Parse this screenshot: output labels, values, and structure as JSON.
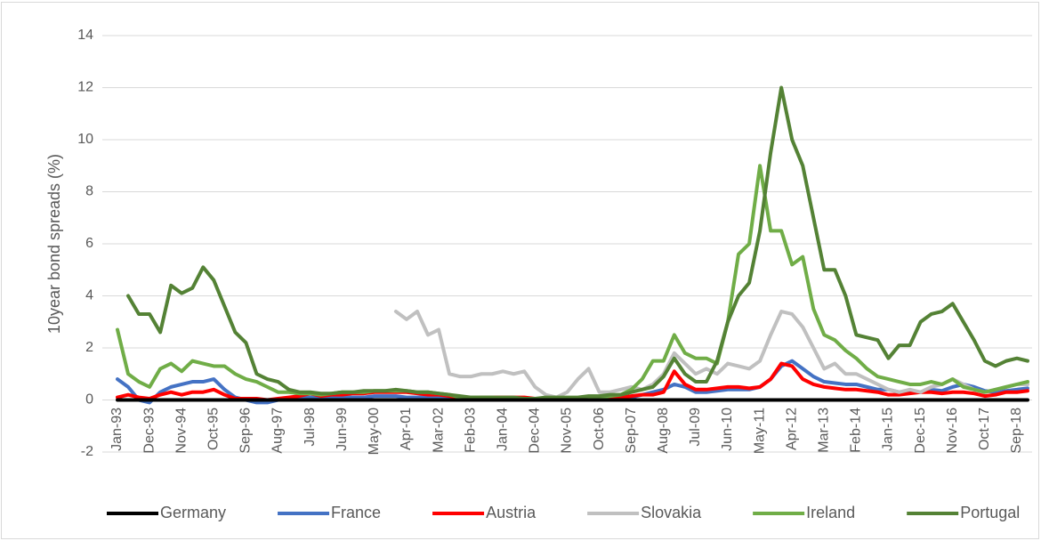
{
  "chart_data": {
    "type": "line",
    "y_label": "10year bond spreads (%)",
    "categories": [
      "Jan-93",
      null,
      null,
      "Dec-93",
      null,
      null,
      "Nov-94",
      null,
      null,
      "Oct-95",
      null,
      null,
      "Sep-96",
      null,
      null,
      "Aug-97",
      null,
      null,
      "Jul-98",
      null,
      null,
      "Jun-99",
      null,
      null,
      "May-00",
      null,
      null,
      "Apr-01",
      null,
      null,
      "Mar-02",
      null,
      null,
      "Feb-03",
      null,
      null,
      "Jan-04",
      null,
      null,
      "Dec-04",
      null,
      null,
      "Nov-05",
      null,
      null,
      "Oct-06",
      null,
      null,
      "Sep-07",
      null,
      null,
      "Aug-08",
      null,
      null,
      "Jul-09",
      null,
      null,
      "Jun-10",
      null,
      null,
      "May-11",
      null,
      null,
      "Apr-12",
      null,
      null,
      "Mar-13",
      null,
      null,
      "Feb-14",
      null,
      null,
      "Jan-15",
      null,
      null,
      "Dec-15",
      null,
      null,
      "Nov-16",
      null,
      null,
      "Oct-17",
      null,
      null,
      "Sep-18",
      null
    ],
    "series": [
      {
        "name": "Germany",
        "color": "#000000",
        "values": [
          0,
          0,
          0,
          0,
          0,
          0,
          0,
          0,
          0,
          0,
          0,
          0,
          0,
          0,
          0,
          0,
          0,
          0,
          0,
          0,
          0,
          0,
          0,
          0,
          0,
          0,
          0,
          0,
          0,
          0,
          0,
          0,
          0,
          0,
          0,
          0,
          0,
          0,
          0,
          0,
          0,
          0,
          0,
          0,
          0,
          0,
          0,
          0,
          0,
          0,
          0,
          0,
          0,
          0,
          0,
          0,
          0,
          0,
          0,
          0,
          0,
          0,
          0,
          0,
          0,
          0,
          0,
          0,
          0,
          0,
          0,
          0,
          0,
          0,
          0,
          0,
          0,
          0,
          0,
          0,
          0,
          0,
          0,
          0,
          0,
          0
        ]
      },
      {
        "name": "France",
        "color": "#4472c4",
        "values": [
          0.8,
          0.5,
          0,
          -0.1,
          0.3,
          0.5,
          0.6,
          0.7,
          0.7,
          0.8,
          0.4,
          0.1,
          0,
          -0.1,
          -0.1,
          0,
          0.05,
          0.1,
          0.1,
          0.1,
          0.1,
          0.1,
          0.1,
          0.1,
          0.15,
          0.15,
          0.15,
          0.1,
          0.1,
          0.1,
          0.1,
          0.1,
          0.05,
          0.05,
          0.05,
          0.05,
          0.05,
          0.05,
          0.05,
          0,
          0,
          0,
          0,
          0.05,
          0.05,
          0.05,
          0.05,
          0.1,
          0.1,
          0.2,
          0.3,
          0.4,
          0.6,
          0.5,
          0.3,
          0.3,
          0.35,
          0.4,
          0.4,
          0.4,
          0.5,
          0.8,
          1.3,
          1.5,
          1.2,
          0.9,
          0.7,
          0.65,
          0.6,
          0.6,
          0.5,
          0.4,
          0.4,
          0.3,
          0.3,
          0.3,
          0.4,
          0.35,
          0.5,
          0.6,
          0.5,
          0.35,
          0.3,
          0.35,
          0.4,
          0.45
        ]
      },
      {
        "name": "Austria",
        "color": "#ff0000",
        "values": [
          0.1,
          0.2,
          0.1,
          0.05,
          0.2,
          0.3,
          0.2,
          0.3,
          0.3,
          0.4,
          0.2,
          0.05,
          0.05,
          0.05,
          0,
          0.05,
          0.1,
          0.15,
          0.25,
          0.15,
          0.2,
          0.2,
          0.25,
          0.25,
          0.3,
          0.3,
          0.3,
          0.3,
          0.25,
          0.2,
          0.2,
          0.15,
          0.1,
          0.05,
          0.1,
          0.1,
          0.1,
          0.1,
          0.1,
          0.05,
          0,
          0.05,
          0.05,
          0.05,
          0.05,
          0.05,
          0.1,
          0.1,
          0.15,
          0.2,
          0.2,
          0.3,
          1.1,
          0.6,
          0.4,
          0.4,
          0.45,
          0.5,
          0.5,
          0.45,
          0.5,
          0.8,
          1.4,
          1.3,
          0.8,
          0.6,
          0.5,
          0.45,
          0.4,
          0.4,
          0.35,
          0.3,
          0.2,
          0.2,
          0.25,
          0.3,
          0.3,
          0.25,
          0.3,
          0.3,
          0.25,
          0.15,
          0.2,
          0.3,
          0.3,
          0.35
        ]
      },
      {
        "name": "Slovakia",
        "color": "#c0c0c0",
        "values": [
          null,
          null,
          null,
          null,
          null,
          null,
          null,
          null,
          null,
          null,
          null,
          null,
          null,
          null,
          null,
          null,
          null,
          null,
          null,
          null,
          null,
          null,
          null,
          null,
          null,
          null,
          3.4,
          3.1,
          3.4,
          2.5,
          2.7,
          1.0,
          0.9,
          0.9,
          1.0,
          1.0,
          1.1,
          1.0,
          1.1,
          0.5,
          0.2,
          0.1,
          0.3,
          0.8,
          1.2,
          0.3,
          0.3,
          0.4,
          0.5,
          0.4,
          0.6,
          1.0,
          1.8,
          1.4,
          1.0,
          1.2,
          1.0,
          1.4,
          1.3,
          1.2,
          1.5,
          2.5,
          3.4,
          3.3,
          2.8,
          2.0,
          1.2,
          1.4,
          1.0,
          1.0,
          0.8,
          0.6,
          0.4,
          0.3,
          0.4,
          0.3,
          0.5,
          0.6,
          0.8,
          0.6,
          0.4,
          0.3,
          0.4,
          0.5,
          0.6,
          0.6
        ]
      },
      {
        "name": "Ireland",
        "color": "#70ad47",
        "values": [
          2.7,
          1.0,
          0.7,
          0.5,
          1.2,
          1.4,
          1.1,
          1.5,
          1.4,
          1.3,
          1.3,
          1.0,
          0.8,
          0.7,
          0.5,
          0.3,
          0.3,
          0.25,
          0.25,
          0.2,
          0.25,
          0.3,
          0.3,
          0.3,
          0.35,
          0.35,
          0.35,
          0.35,
          0.3,
          0.3,
          0.25,
          0.2,
          0.1,
          0.1,
          0.1,
          0.1,
          0.05,
          0.05,
          0,
          0,
          0.05,
          0.05,
          0.05,
          0.05,
          0.1,
          0.1,
          0.15,
          0.2,
          0.4,
          0.8,
          1.5,
          1.5,
          2.5,
          1.8,
          1.6,
          1.6,
          1.4,
          3.0,
          5.6,
          6.0,
          9.0,
          6.5,
          6.5,
          5.2,
          5.5,
          3.5,
          2.5,
          2.3,
          1.9,
          1.6,
          1.2,
          0.9,
          0.8,
          0.7,
          0.6,
          0.6,
          0.7,
          0.6,
          0.8,
          0.5,
          0.4,
          0.3,
          0.4,
          0.5,
          0.6,
          0.7
        ]
      },
      {
        "name": "Portugal",
        "color": "#548235",
        "values": [
          null,
          4.0,
          3.3,
          3.3,
          2.6,
          4.4,
          4.1,
          4.3,
          5.1,
          4.6,
          3.6,
          2.6,
          2.2,
          1.0,
          0.8,
          0.7,
          0.4,
          0.3,
          0.3,
          0.25,
          0.25,
          0.3,
          0.3,
          0.35,
          0.35,
          0.35,
          0.4,
          0.35,
          0.3,
          0.3,
          0.25,
          0.2,
          0.15,
          0.1,
          0.1,
          0.1,
          0.1,
          0.1,
          0.05,
          0.05,
          0.1,
          0.1,
          0.1,
          0.1,
          0.15,
          0.15,
          0.2,
          0.2,
          0.3,
          0.4,
          0.5,
          0.9,
          1.6,
          1.0,
          0.7,
          0.7,
          1.5,
          3.0,
          4.0,
          4.5,
          6.5,
          9.5,
          12.0,
          10.0,
          9.0,
          7.0,
          5.0,
          5.0,
          4.0,
          2.5,
          2.4,
          2.3,
          1.6,
          2.1,
          2.1,
          3.0,
          3.3,
          3.4,
          3.7,
          3.0,
          2.3,
          1.5,
          1.3,
          1.5,
          1.6,
          1.5
        ]
      }
    ],
    "ylim": [
      -2,
      14
    ],
    "yticks": [
      -2,
      0,
      2,
      4,
      6,
      8,
      10,
      12,
      14
    ],
    "grid": true,
    "legend": "bottom"
  }
}
